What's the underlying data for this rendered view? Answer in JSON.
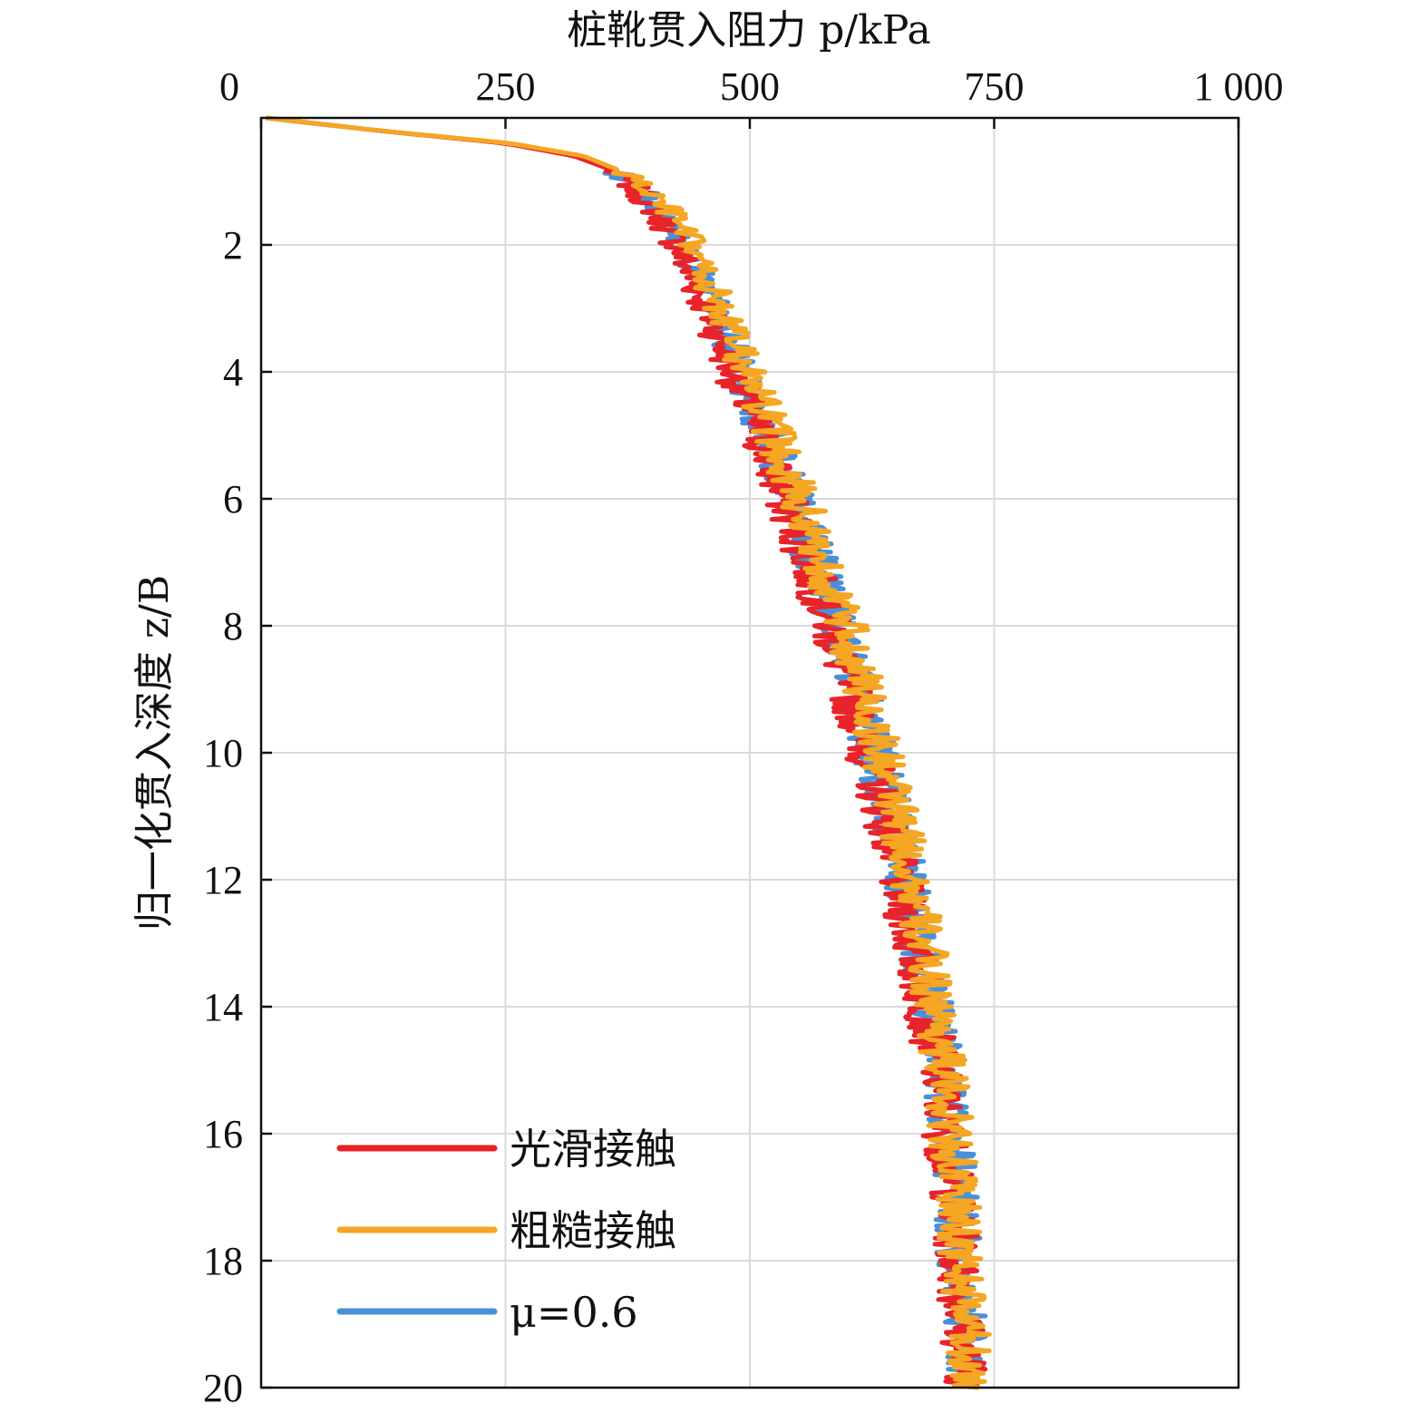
{
  "chart_data": {
    "type": "line",
    "xlabel": "桩靴贯入阻力 p/kPa",
    "ylabel": "归一化贯入深度 z/B",
    "xlim": [
      0,
      1000
    ],
    "ylim": [
      20,
      0
    ],
    "x_axis_position": "top",
    "y_inverted": true,
    "grid": true,
    "legend_position": "bottom-left",
    "xticks": [
      0,
      250,
      500,
      750,
      1000
    ],
    "xtick_labels": [
      "0",
      "250",
      "500",
      "750",
      "1 000"
    ],
    "yticks": [
      2,
      4,
      6,
      8,
      10,
      12,
      14,
      16,
      18,
      20
    ],
    "ytick_labels": [
      "2",
      "4",
      "6",
      "8",
      "10",
      "12",
      "14",
      "16",
      "18",
      "20"
    ],
    "depth": [
      0.0,
      0.2,
      0.4,
      0.6,
      0.8,
      1.0,
      1.5,
      2.0,
      2.5,
      3.0,
      3.5,
      4.0,
      5.0,
      6.0,
      7.0,
      8.0,
      9.0,
      10.0,
      11.0,
      12.0,
      13.0,
      14.0,
      15.0,
      16.0,
      17.0,
      18.0,
      19.0,
      20.0
    ],
    "series": [
      {
        "name": "光滑接触",
        "color": "#e8232a",
        "values": [
          5,
          120,
          250,
          320,
          355,
          375,
          405,
          425,
          440,
          455,
          470,
          482,
          510,
          535,
          560,
          582,
          602,
          620,
          638,
          652,
          665,
          680,
          693,
          700,
          708,
          712,
          718,
          722
        ]
      },
      {
        "name": "粗糙接触",
        "color": "#f5a623",
        "values": [
          5,
          120,
          255,
          330,
          362,
          385,
          420,
          440,
          455,
          470,
          485,
          497,
          525,
          550,
          575,
          597,
          617,
          634,
          652,
          665,
          678,
          690,
          700,
          706,
          712,
          716,
          722,
          726
        ]
      },
      {
        "name": "μ=0.6",
        "color": "#4a90d9",
        "values": [
          5,
          120,
          252,
          325,
          358,
          380,
          412,
          432,
          448,
          462,
          478,
          490,
          518,
          543,
          568,
          590,
          610,
          628,
          645,
          659,
          672,
          686,
          697,
          704,
          711,
          714,
          720,
          725
        ]
      }
    ]
  },
  "legend": {
    "items": [
      {
        "label": "光滑接触",
        "color": "#e8232a"
      },
      {
        "label": "粗糙接触",
        "color": "#f5a623"
      },
      {
        "label": "μ=0.6",
        "color": "#4a90d9"
      }
    ]
  }
}
